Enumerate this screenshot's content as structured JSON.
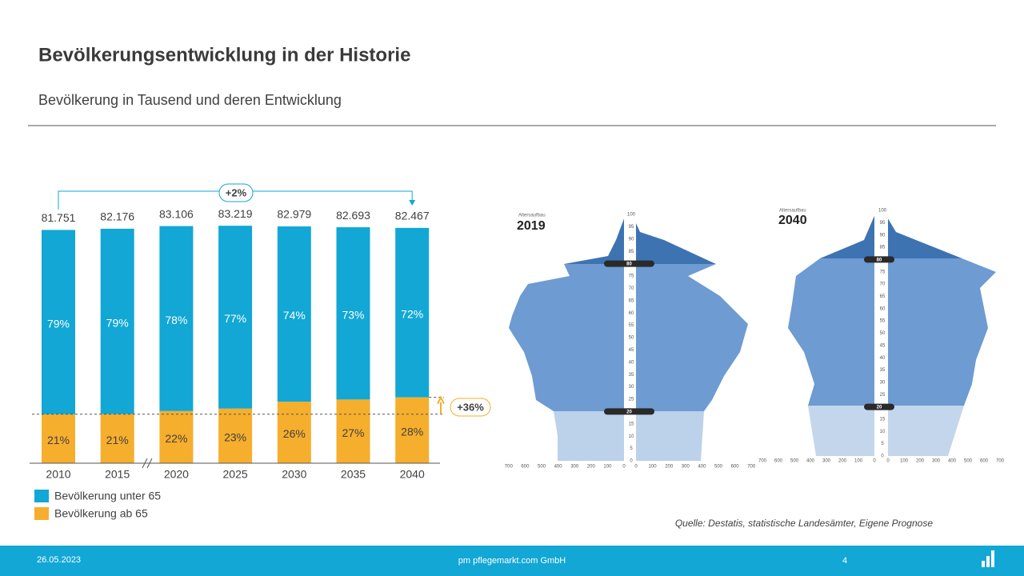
{
  "title": "Bevölkerungsentwicklung in der Historie",
  "subtitle": "Bevölkerung in Tausend und deren Entwicklung",
  "chart_data": {
    "type": "bar",
    "stacked": true,
    "categories": [
      "2010",
      "2015",
      "2020",
      "2025",
      "2030",
      "2035",
      "2040"
    ],
    "series": [
      {
        "name": "Bevölkerung unter 65",
        "color": "#12a7d4",
        "values": [
          79,
          79,
          78,
          77,
          74,
          73,
          72
        ],
        "value_labels": [
          "79%",
          "79%",
          "78%",
          "77%",
          "74%",
          "73%",
          "72%"
        ]
      },
      {
        "name": "Bevölkerung ab 65",
        "color": "#f6ae2d",
        "values": [
          21,
          21,
          22,
          23,
          26,
          27,
          28
        ],
        "value_labels": [
          "21%",
          "21%",
          "22%",
          "23%",
          "26%",
          "27%",
          "28%"
        ]
      }
    ],
    "totals": {
      "values": [
        81751,
        82176,
        83106,
        83219,
        82979,
        82693,
        82467
      ],
      "value_labels": [
        "81.751",
        "82.176",
        "83.106",
        "83.219",
        "82.979",
        "82.693",
        "82.467"
      ]
    },
    "ylim": [
      0,
      90000
    ],
    "annotations": [
      "+2%",
      "+36%"
    ]
  },
  "pyramids": [
    {
      "label": "Altersaufbau",
      "year": "2019",
      "xticks": [
        700,
        600,
        500,
        400,
        300,
        200,
        100,
        0
      ],
      "ages": [
        0,
        5,
        10,
        15,
        20,
        25,
        30,
        35,
        40,
        45,
        50,
        55,
        60,
        65,
        70,
        75,
        80,
        85,
        90,
        95,
        100
      ],
      "markers": [
        80,
        20
      ]
    },
    {
      "label": "Altersaufbau",
      "year": "2040",
      "xticks": [
        700,
        600,
        500,
        400,
        300,
        200,
        100,
        0
      ],
      "ages": [
        0,
        5,
        10,
        15,
        20,
        25,
        30,
        35,
        40,
        45,
        50,
        55,
        60,
        65,
        70,
        75,
        80,
        85,
        90,
        95,
        100
      ],
      "markers": [
        80,
        20
      ]
    }
  ],
  "source": "Quelle: Destatis, statistische Landesämter, Eigene Prognose",
  "footer": {
    "date": "26.05.2023",
    "company": "pm pflegemarkt.com GmbH",
    "page": "4"
  }
}
